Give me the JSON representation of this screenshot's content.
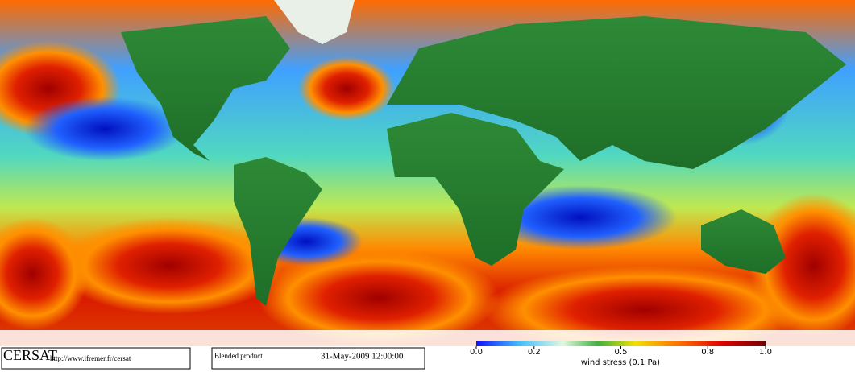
{
  "footer": {
    "logo": "CERSAT",
    "url": "http://www.ifremer.fr/cersat",
    "product": "Blended product",
    "date": "31-May-2009 12:00:00"
  },
  "colorbar": {
    "label": "wind stress (0.1 Pa)",
    "lim": [
      0,
      1
    ],
    "ticks": [
      {
        "value": 0,
        "label": "0.0"
      },
      {
        "value": 0.2,
        "label": "0.2"
      },
      {
        "value": 0.5,
        "label": "0.5"
      },
      {
        "value": 0.8,
        "label": "0.8"
      },
      {
        "value": 1,
        "label": "1.0"
      }
    ]
  }
}
